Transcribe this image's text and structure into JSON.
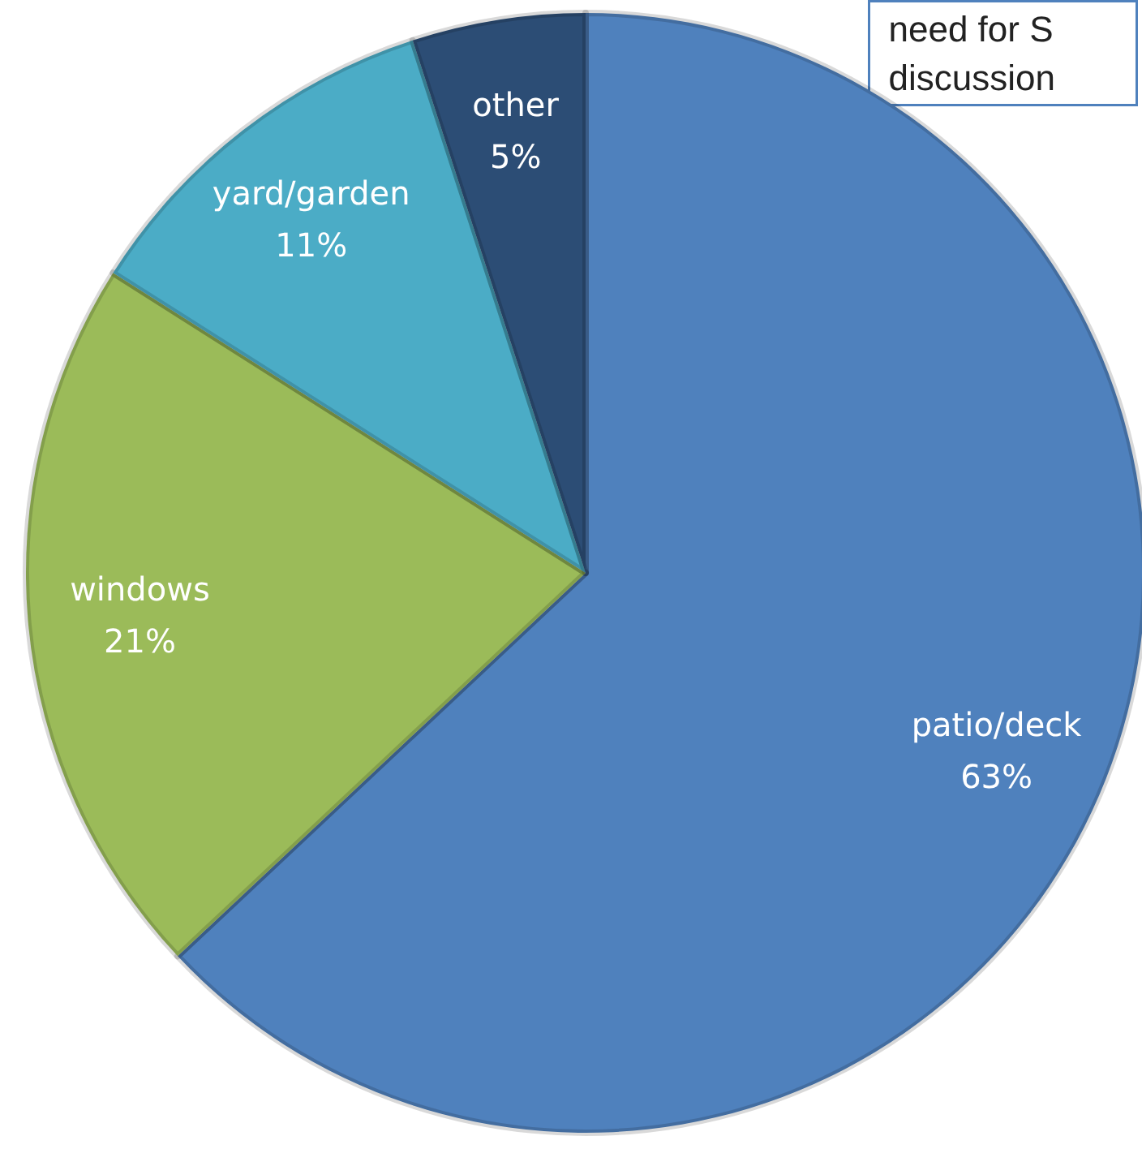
{
  "chart_data": {
    "type": "pie",
    "categories": [
      "patio/deck",
      "windows",
      "yard/garden",
      "other"
    ],
    "values": [
      63,
      21,
      11,
      5
    ],
    "colors": [
      "#4f81bd",
      "#9bbb59",
      "#4bacc6",
      "#2c4d75"
    ],
    "value_labels": [
      "63%",
      "21%",
      "11%",
      "5%"
    ],
    "legend": false,
    "annotations": [
      "need for S discussion"
    ]
  }
}
